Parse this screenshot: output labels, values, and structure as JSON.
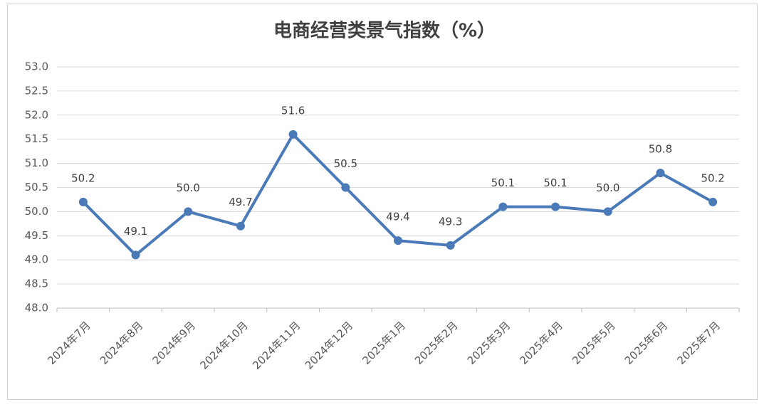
{
  "chart_data": {
    "type": "line",
    "title": "电商经营类景气指数（%）",
    "categories": [
      "2024年7月",
      "2024年8月",
      "2024年9月",
      "2024年10月",
      "2024年11月",
      "2024年12月",
      "2025年1月",
      "2025年2月",
      "2025年3月",
      "2025年4月",
      "2025年5月",
      "2025年6月",
      "2025年7月"
    ],
    "values": [
      50.2,
      49.1,
      50.0,
      49.7,
      51.6,
      50.5,
      49.4,
      49.3,
      50.1,
      50.1,
      50.0,
      50.8,
      50.2
    ],
    "value_labels": [
      "50.2",
      "49.1",
      "50.0",
      "49.7",
      "51.6",
      "50.5",
      "49.4",
      "49.3",
      "50.1",
      "50.1",
      "50.0",
      "50.8",
      "50.2"
    ],
    "color": "#4a7ab8",
    "ylim": [
      48,
      53
    ],
    "yticks": [
      {
        "value": 48,
        "label": "48.0"
      },
      48.5,
      {
        "value": 49,
        "label": "49.0"
      },
      49.5,
      {
        "value": 50,
        "label": "50.0"
      },
      50.5,
      {
        "value": 51,
        "label": "51.0"
      },
      51.5,
      {
        "value": 52,
        "label": "52.0"
      },
      52.5,
      {
        "value": 53,
        "label": "53.0"
      }
    ],
    "grid": true
  }
}
